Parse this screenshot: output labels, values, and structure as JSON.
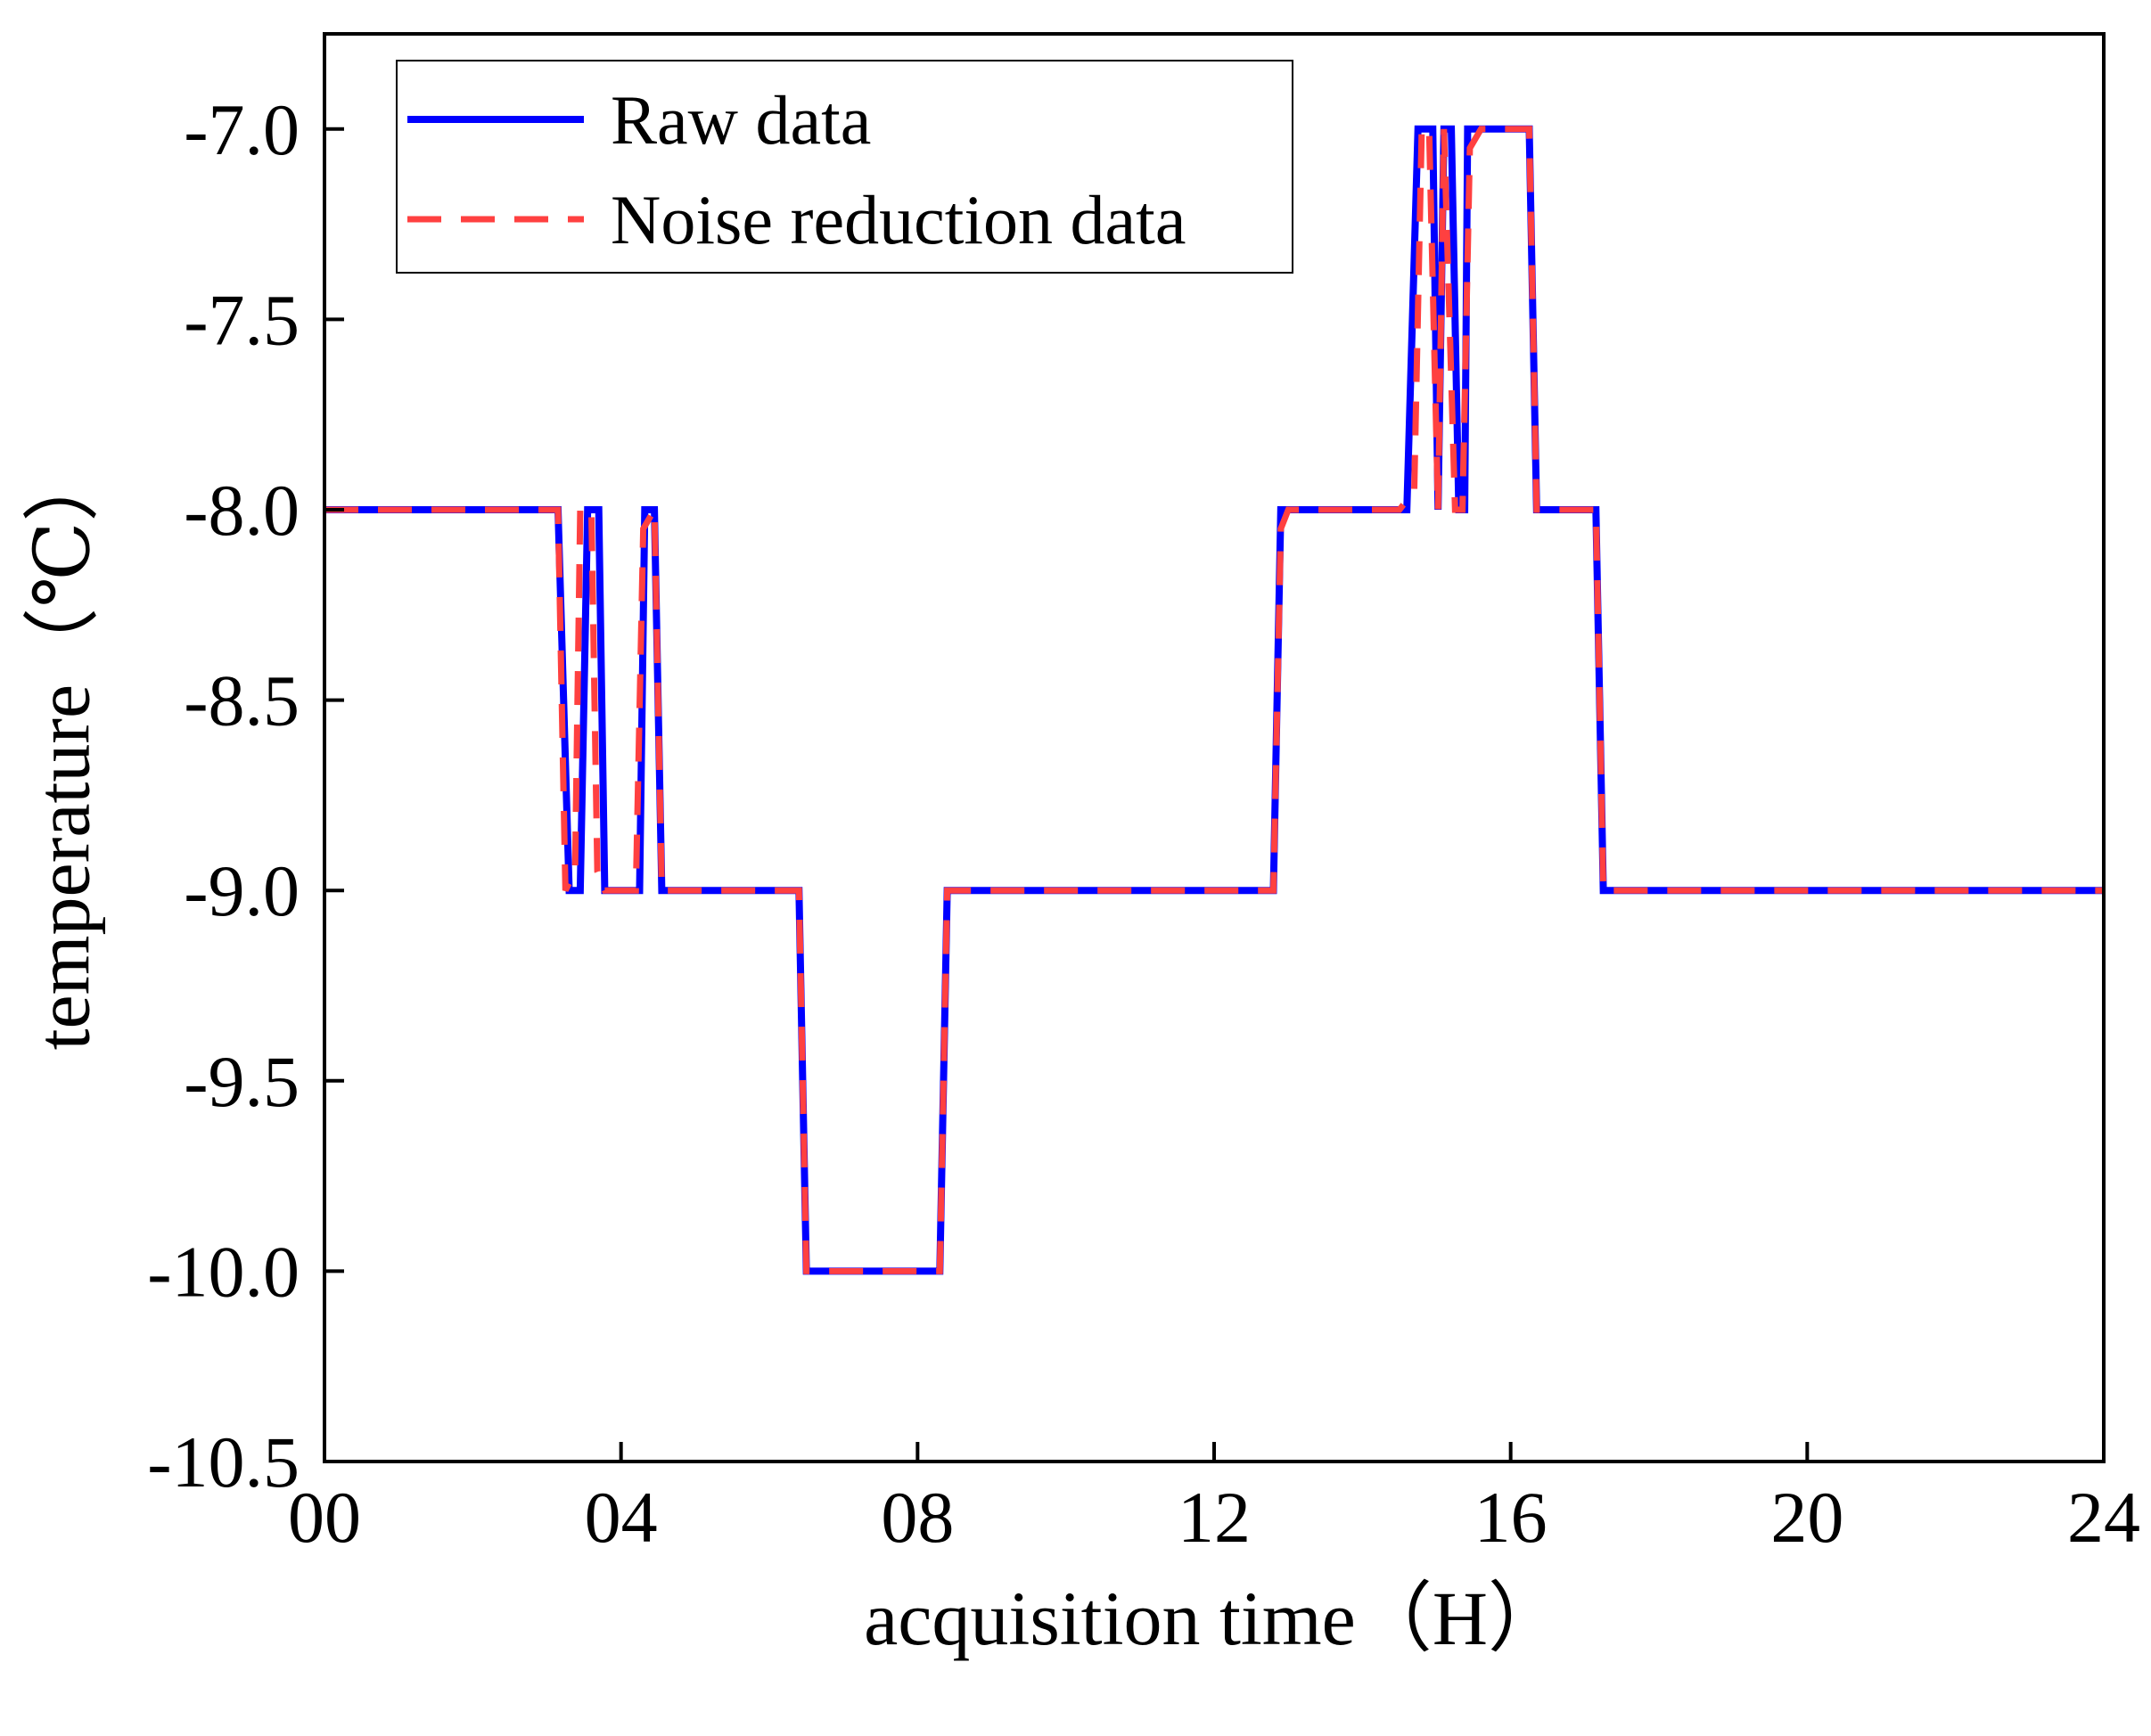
{
  "chart_data": {
    "type": "line",
    "title": "",
    "xlabel": "acquisition time（H）",
    "ylabel": "temperature（℃）",
    "xlim": [
      0,
      24
    ],
    "ylim": [
      -10.5,
      -6.75
    ],
    "xticks": [
      0,
      4,
      8,
      12,
      16,
      20,
      24
    ],
    "xtick_labels": [
      "00",
      "04",
      "08",
      "12",
      "16",
      "20",
      "24"
    ],
    "yticks": [
      -10.5,
      -10.0,
      -9.5,
      -9.0,
      -8.5,
      -8.0,
      -7.5,
      -7.0
    ],
    "ytick_labels": [
      "-10.5",
      "-10.0",
      "-9.5",
      "-9.0",
      "-8.5",
      "-8.0",
      "-7.5",
      "-7.0"
    ],
    "grid": false,
    "legend_position": "top-left",
    "series": [
      {
        "name": "Raw data",
        "color": "#0000ff",
        "style": "solid",
        "points": [
          [
            0,
            -8.0
          ],
          [
            3.15,
            -8.0
          ],
          [
            3.3,
            -9.0
          ],
          [
            3.45,
            -9.0
          ],
          [
            3.55,
            -8.0
          ],
          [
            3.7,
            -8.0
          ],
          [
            3.78,
            -9.0
          ],
          [
            4.25,
            -9.0
          ],
          [
            4.32,
            -8.0
          ],
          [
            4.45,
            -8.0
          ],
          [
            4.55,
            -9.0
          ],
          [
            6.4,
            -9.0
          ],
          [
            6.5,
            -10.0
          ],
          [
            8.3,
            -10.0
          ],
          [
            8.4,
            -9.0
          ],
          [
            12.8,
            -9.0
          ],
          [
            12.9,
            -8.0
          ],
          [
            14.6,
            -8.0
          ],
          [
            14.75,
            -7.0
          ],
          [
            14.95,
            -7.0
          ],
          [
            15.02,
            -8.0
          ],
          [
            15.1,
            -7.0
          ],
          [
            15.2,
            -7.0
          ],
          [
            15.3,
            -8.0
          ],
          [
            15.38,
            -8.0
          ],
          [
            15.42,
            -7.0
          ],
          [
            16.25,
            -7.0
          ],
          [
            16.35,
            -8.0
          ],
          [
            17.15,
            -8.0
          ],
          [
            17.25,
            -9.0
          ],
          [
            24,
            -9.0
          ]
        ]
      },
      {
        "name": "Noise reduction data",
        "color": "#ff4040",
        "style": "dashed",
        "points": [
          [
            0,
            -8.0
          ],
          [
            3.15,
            -8.0
          ],
          [
            3.25,
            -9.0
          ],
          [
            3.38,
            -8.95
          ],
          [
            3.45,
            -8.0
          ],
          [
            3.6,
            -8.0
          ],
          [
            3.68,
            -8.95
          ],
          [
            3.78,
            -9.0
          ],
          [
            4.2,
            -9.0
          ],
          [
            4.3,
            -8.05
          ],
          [
            4.45,
            -8.0
          ],
          [
            4.55,
            -9.0
          ],
          [
            6.4,
            -9.0
          ],
          [
            6.5,
            -10.0
          ],
          [
            8.3,
            -10.0
          ],
          [
            8.4,
            -9.0
          ],
          [
            12.8,
            -9.0
          ],
          [
            12.9,
            -8.05
          ],
          [
            13.0,
            -8.0
          ],
          [
            14.5,
            -8.0
          ],
          [
            14.7,
            -7.95
          ],
          [
            14.8,
            -7.0
          ],
          [
            14.9,
            -7.0
          ],
          [
            15.02,
            -8.0
          ],
          [
            15.1,
            -7.0
          ],
          [
            15.25,
            -8.0
          ],
          [
            15.35,
            -8.0
          ],
          [
            15.45,
            -7.05
          ],
          [
            15.6,
            -7.0
          ],
          [
            16.25,
            -7.0
          ],
          [
            16.35,
            -8.0
          ],
          [
            17.15,
            -8.0
          ],
          [
            17.25,
            -9.0
          ],
          [
            24,
            -9.0
          ]
        ]
      }
    ]
  }
}
